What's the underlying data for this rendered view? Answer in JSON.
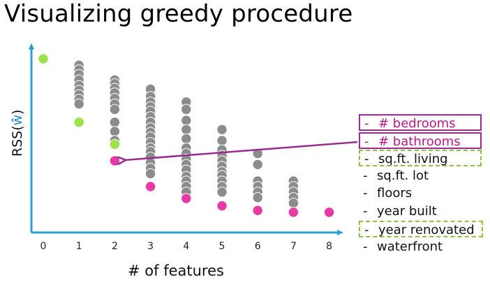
{
  "title": "Visualizing greedy procedure",
  "chart_data": {
    "type": "scatter",
    "title": "Visualizing greedy procedure",
    "ylabel_prefix": "RSS(",
    "ylabel_w": "ŵ",
    "ylabel_suffix": ")",
    "xlabel": "# of features",
    "xticks": [
      "0",
      "1",
      "2",
      "3",
      "4",
      "5",
      "6",
      "7",
      "8"
    ],
    "ylim": [
      0,
      100
    ],
    "colors": {
      "axis": "#2b9fd0",
      "gray": "#8c8c8c",
      "green": "#9be34a",
      "magenta": "#e83aa6",
      "arrow": "#9b2b8f"
    },
    "columns": [
      {
        "x": 0,
        "gray": [],
        "green": [
          94.5
        ],
        "magenta": []
      },
      {
        "x": 1,
        "gray": [
          91,
          88.5,
          86,
          83,
          80,
          77.5,
          75,
          72.5,
          70
        ],
        "green": [
          60
        ],
        "magenta": []
      },
      {
        "x": 2,
        "gray": [
          83,
          81,
          78.5,
          76,
          73,
          70,
          67,
          60,
          55,
          50
        ],
        "green": [
          48
        ],
        "magenta": [
          39
        ]
      },
      {
        "x": 3,
        "gray": [
          78,
          74,
          71,
          68.5,
          66,
          63,
          60,
          57,
          54.5,
          52,
          49,
          46,
          44,
          41,
          38,
          35,
          32
        ],
        "green": [],
        "magenta": [
          25
        ]
      },
      {
        "x": 4,
        "gray": [
          71,
          67,
          61,
          56,
          51,
          46,
          43,
          40,
          37,
          34,
          30.5,
          28,
          25,
          22
        ],
        "green": [],
        "magenta": [
          18.5
        ]
      },
      {
        "x": 5,
        "gray": [
          56,
          50,
          45,
          42,
          39,
          36,
          33,
          31,
          28,
          25,
          22
        ],
        "green": [],
        "magenta": [
          14.5
        ]
      },
      {
        "x": 6,
        "gray": [
          43,
          37,
          28,
          25,
          22,
          19
        ],
        "green": [],
        "magenta": [
          12
        ]
      },
      {
        "x": 7,
        "gray": [
          28,
          25,
          22,
          19,
          16
        ],
        "green": [],
        "magenta": [
          11
        ]
      },
      {
        "x": 8,
        "gray": [],
        "green": [],
        "magenta": [
          11
        ]
      }
    ]
  },
  "legend": {
    "items": [
      {
        "dash": "-",
        "label": "# bedrooms",
        "style": "magenta"
      },
      {
        "dash": "-",
        "label": "# bathrooms",
        "style": "magenta"
      },
      {
        "dash": "-",
        "label": "sq.ft. living",
        "style": "green"
      },
      {
        "dash": "-",
        "label": "sq.ft. lot",
        "style": "plain"
      },
      {
        "dash": "-",
        "label": "floors",
        "style": "plain"
      },
      {
        "dash": "-",
        "label": "year built",
        "style": "plain"
      },
      {
        "dash": "-",
        "label": "year renovated",
        "style": "green"
      },
      {
        "dash": "-",
        "label": "waterfront",
        "style": "plain"
      }
    ]
  }
}
